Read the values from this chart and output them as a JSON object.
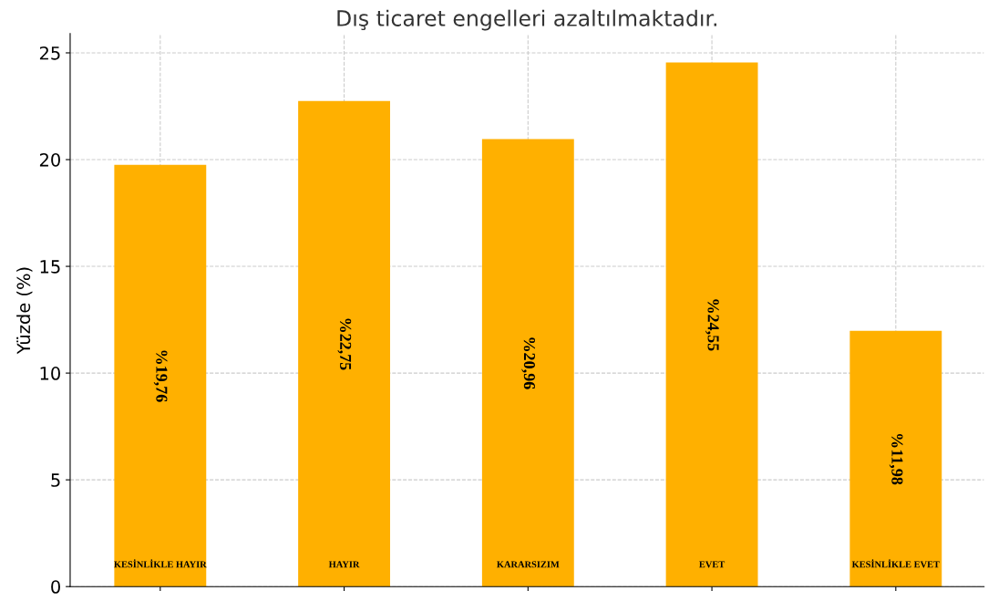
{
  "chart_data": {
    "type": "bar",
    "title": "Dış ticaret engelleri azaltılmaktadır.",
    "ylabel": "Yüzde (%)",
    "categories": [
      "KESİNLİKLE HAYIR",
      "HAYIR",
      "KARARSIZIM",
      "EVET",
      "KESİNLİKLE EVET"
    ],
    "values": [
      19.76,
      22.75,
      20.96,
      24.55,
      11.98
    ],
    "value_labels": [
      "%19,76",
      "%22,75",
      "%20,96",
      "%24,55",
      "%11,98"
    ],
    "color": "#ffb000",
    "ylim": [
      0,
      25.9
    ],
    "yticks": [
      0,
      5,
      10,
      15,
      20,
      25
    ],
    "grid": true
  }
}
